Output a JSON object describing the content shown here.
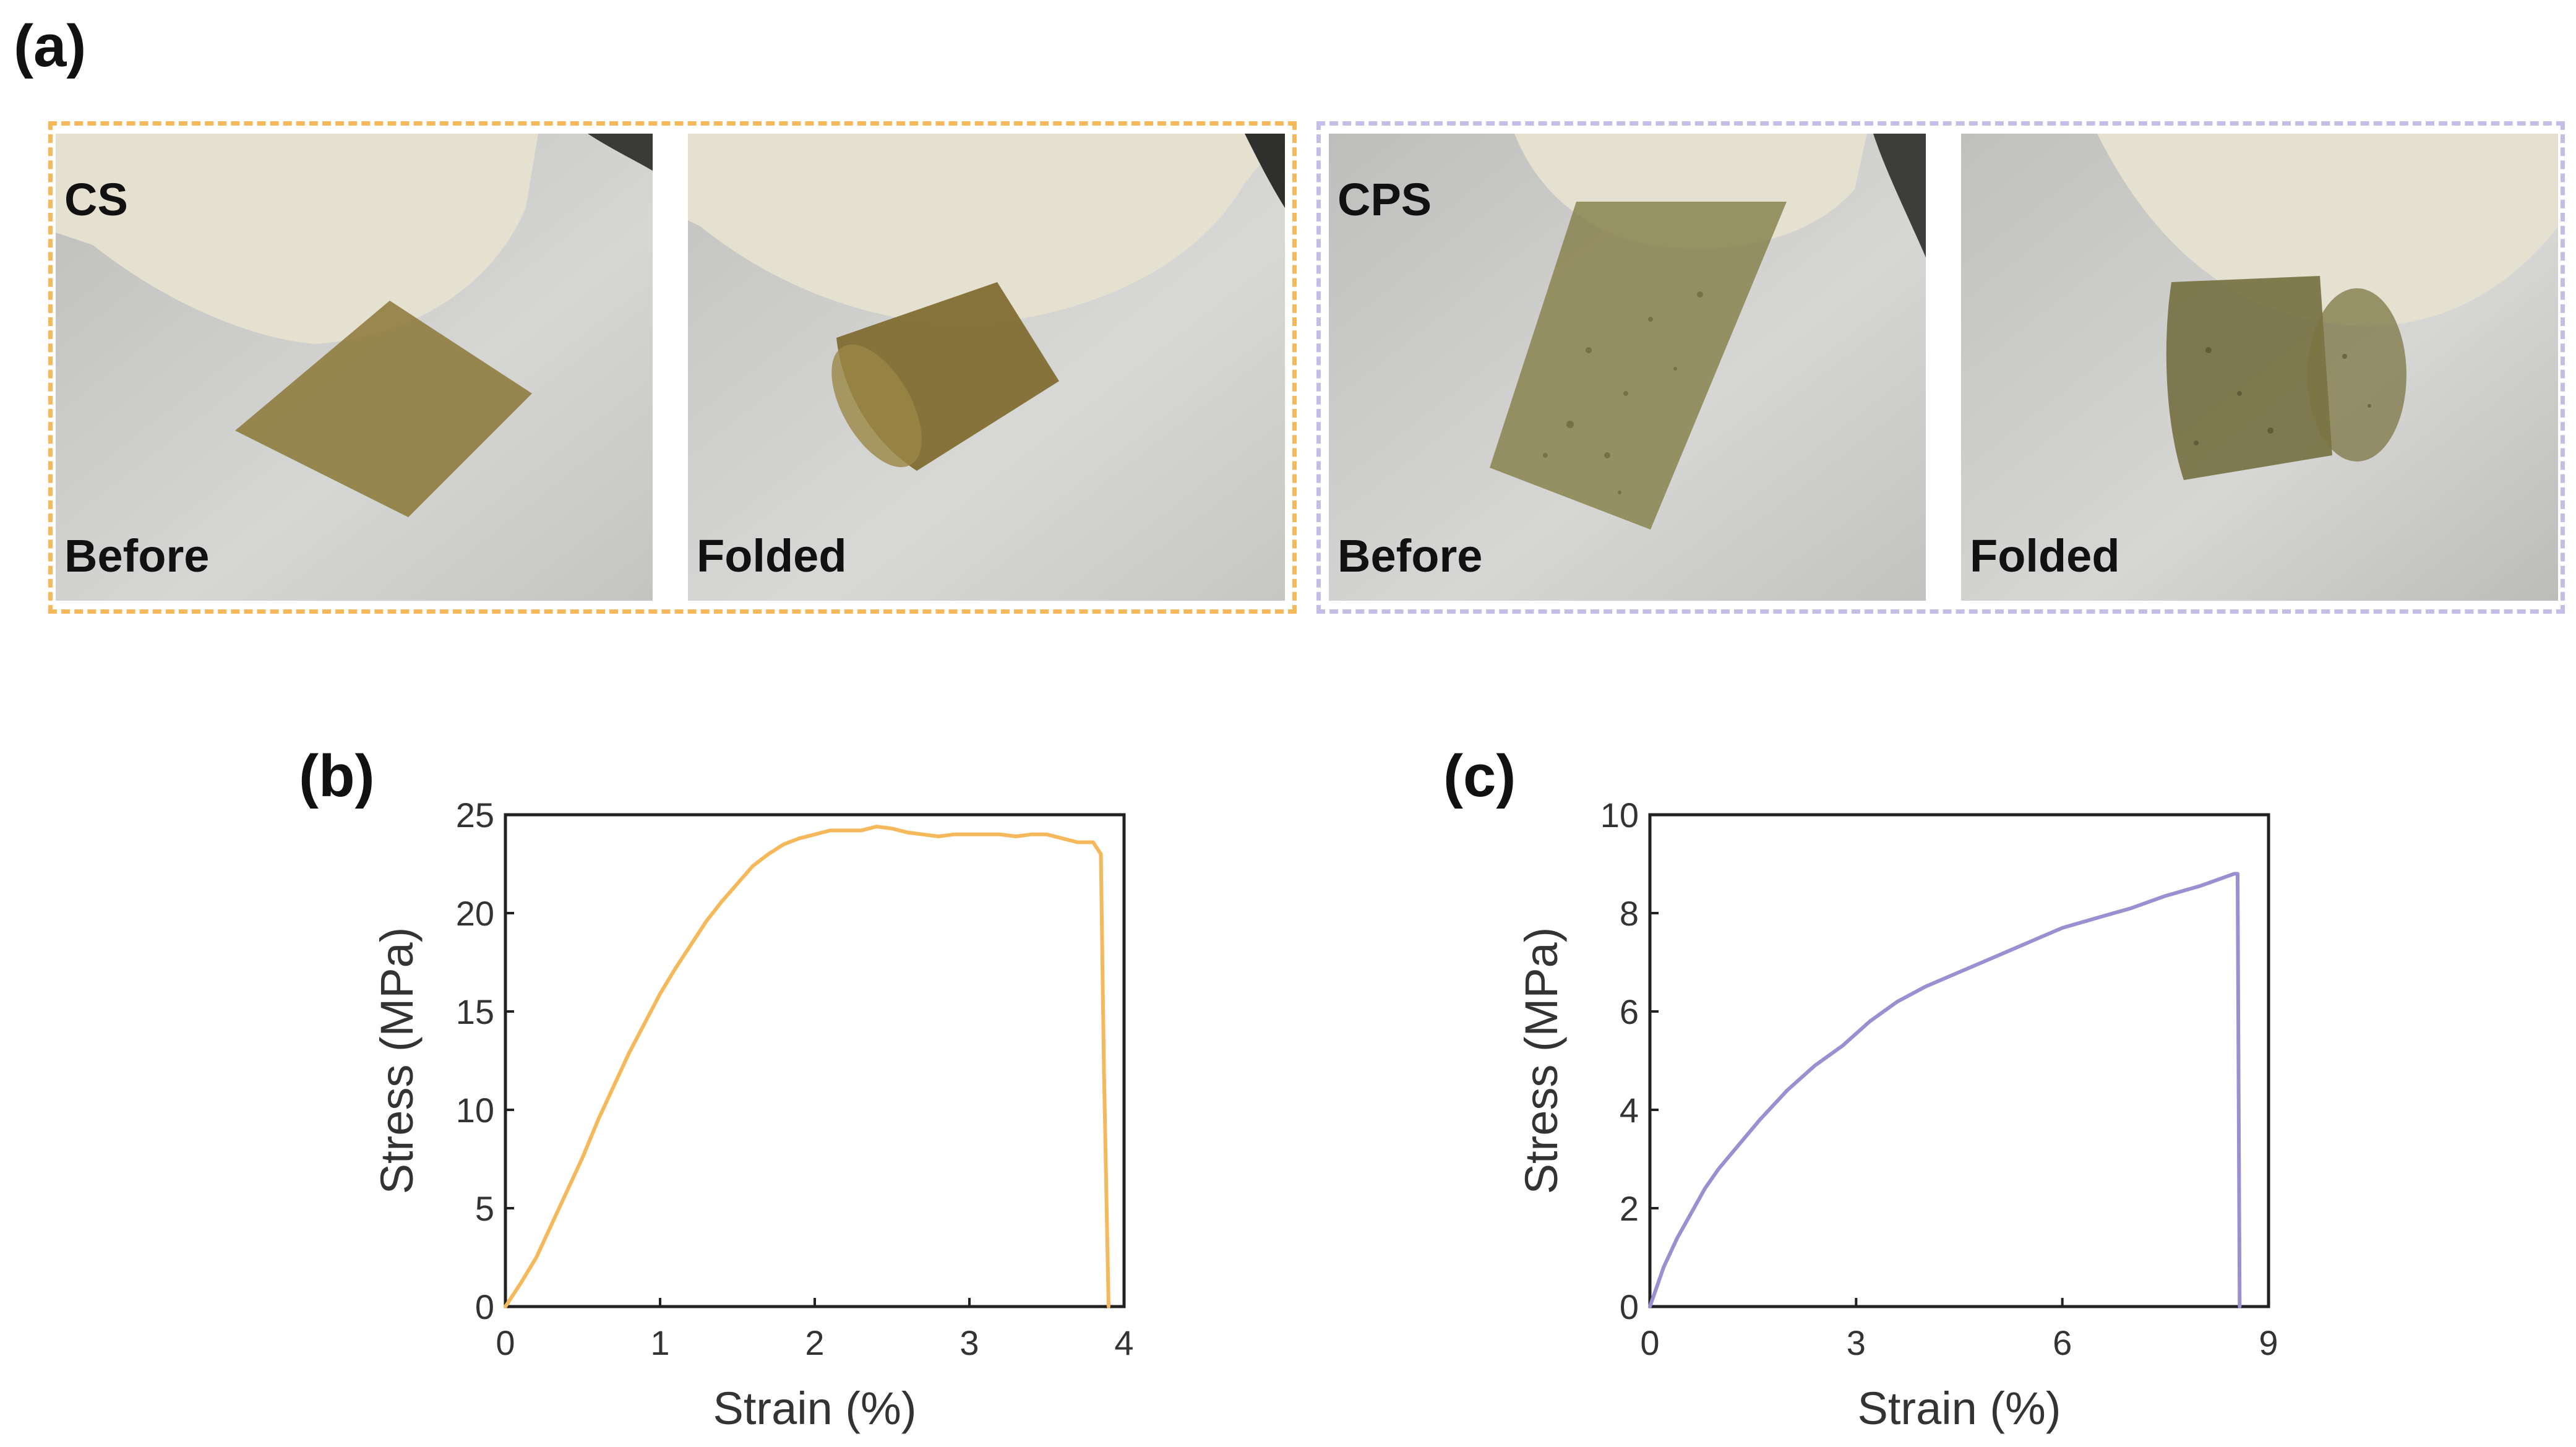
{
  "figure": {
    "label_a": "(a)",
    "label_b": "(b)",
    "label_c": "(c)"
  },
  "photos": {
    "groups": [
      {
        "name": "CS",
        "border_color": "#f5b85a"
      },
      {
        "name": "CPS",
        "border_color": "#c4bde6"
      }
    ],
    "panels": [
      {
        "sample": "CS",
        "state": "Before",
        "film_color": "#8e7a3c"
      },
      {
        "sample": "",
        "state": "Folded",
        "film_color": "#7f6a2e"
      },
      {
        "sample": "CPS",
        "state": "Before",
        "film_color": "#8a8450"
      },
      {
        "sample": "",
        "state": "Folded",
        "film_color": "#6e6838"
      }
    ],
    "background_color": "#d2d2d0",
    "glove_color": "#e7e3d2"
  },
  "chart_data": [
    {
      "type": "line",
      "panel": "(b)",
      "xlabel": "Strain (%)",
      "ylabel": "Stress (MPa)",
      "xlim": [
        0,
        4
      ],
      "ylim": [
        0,
        25
      ],
      "xticks": [
        0,
        1,
        2,
        3,
        4
      ],
      "yticks": [
        0,
        5,
        10,
        15,
        20,
        25
      ],
      "grid": false,
      "color": "#f5b85a",
      "series": [
        {
          "x": [
            0,
            0.1,
            0.2,
            0.3,
            0.4,
            0.5,
            0.6,
            0.7,
            0.8,
            0.9,
            1.0,
            1.1,
            1.2,
            1.3,
            1.4,
            1.5,
            1.6,
            1.7,
            1.8,
            1.9,
            2.0,
            2.1,
            2.2,
            2.3,
            2.4,
            2.5,
            2.6,
            2.7,
            2.8,
            2.9,
            3.0,
            3.1,
            3.2,
            3.3,
            3.4,
            3.5,
            3.6,
            3.7,
            3.8,
            3.85,
            3.87,
            3.9
          ],
          "y": [
            0,
            1.2,
            2.5,
            4.2,
            5.9,
            7.6,
            9.5,
            11.2,
            12.9,
            14.4,
            15.9,
            17.2,
            18.4,
            19.6,
            20.6,
            21.5,
            22.4,
            23.0,
            23.5,
            23.8,
            24.0,
            24.2,
            24.2,
            24.2,
            24.4,
            24.3,
            24.1,
            24.0,
            23.9,
            24.0,
            24.0,
            24.0,
            24.0,
            23.9,
            24.0,
            24.0,
            23.8,
            23.6,
            23.6,
            23.0,
            12.0,
            0
          ]
        }
      ]
    },
    {
      "type": "line",
      "panel": "(c)",
      "xlabel": "Strain (%)",
      "ylabel": "Stress (MPa)",
      "xlim": [
        0,
        9
      ],
      "ylim": [
        0,
        10
      ],
      "xticks": [
        0,
        3,
        6,
        9
      ],
      "yticks": [
        0,
        2,
        4,
        6,
        8,
        10
      ],
      "grid": false,
      "color": "#9a8fd0",
      "series": [
        {
          "x": [
            0,
            0.2,
            0.4,
            0.6,
            0.8,
            1.0,
            1.3,
            1.6,
            2.0,
            2.4,
            2.8,
            3.2,
            3.6,
            4.0,
            4.5,
            5.0,
            5.5,
            6.0,
            6.5,
            7.0,
            7.5,
            8.0,
            8.3,
            8.5,
            8.55,
            8.58
          ],
          "y": [
            0,
            0.8,
            1.4,
            1.9,
            2.4,
            2.8,
            3.3,
            3.8,
            4.4,
            4.9,
            5.3,
            5.8,
            6.2,
            6.5,
            6.8,
            7.1,
            7.4,
            7.7,
            7.9,
            8.1,
            8.35,
            8.55,
            8.7,
            8.8,
            8.8,
            0
          ]
        }
      ]
    }
  ]
}
